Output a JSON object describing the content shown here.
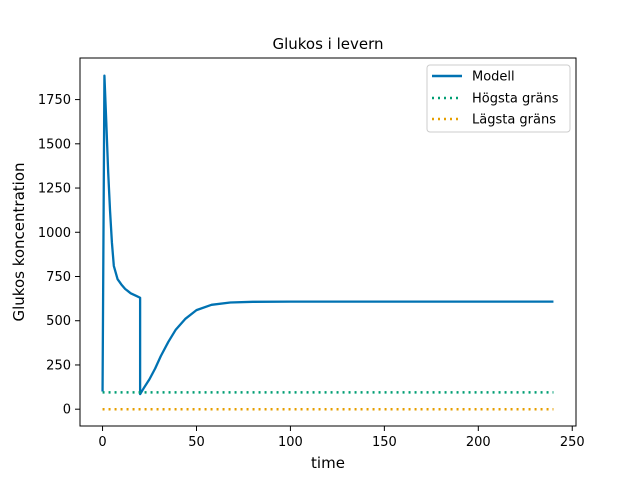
{
  "chart_data": {
    "type": "line",
    "title": "Glukos i levern",
    "xlabel": "time",
    "ylabel": "Glukos koncentration",
    "xlim": [
      -12,
      252
    ],
    "ylim": [
      -95,
      1985
    ],
    "xticks": [
      0,
      50,
      100,
      150,
      200,
      250
    ],
    "yticks": [
      0,
      250,
      500,
      750,
      1000,
      1250,
      1500,
      1750
    ],
    "grid": false,
    "legend_position": "top-right",
    "series": [
      {
        "name": "Modell",
        "color": "#0072B2",
        "style": "solid",
        "x": [
          0,
          1,
          2,
          3,
          4,
          5,
          6,
          8,
          10,
          12,
          15,
          18,
          20,
          20,
          22,
          25,
          28,
          31,
          35,
          39,
          44,
          50,
          58,
          68,
          80,
          100,
          150,
          200,
          240
        ],
        "y": [
          100,
          1885,
          1620,
          1340,
          1120,
          940,
          810,
          735,
          705,
          680,
          655,
          640,
          630,
          85,
          120,
          170,
          230,
          300,
          380,
          450,
          510,
          560,
          590,
          603,
          607,
          608,
          608,
          608,
          608
        ]
      },
      {
        "name": "Högsta gräns",
        "color": "#009E73",
        "style": "dotted",
        "x": [
          0,
          240
        ],
        "y": [
          95,
          95
        ]
      },
      {
        "name": "Lägsta gräns",
        "color": "#E69F00",
        "style": "dotted",
        "x": [
          0,
          240
        ],
        "y": [
          0,
          0
        ]
      }
    ]
  }
}
